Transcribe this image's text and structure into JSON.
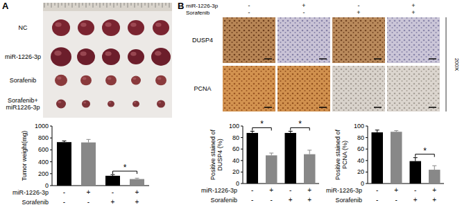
{
  "figure": {
    "panels": [
      "A",
      "B"
    ],
    "tumor_groups": [
      "NC",
      "miR-1226-3p",
      "Sorafenib",
      "Sorafenib+ miR1226-3p"
    ],
    "ihc_header": [
      {
        "label": "miR-1226-3p",
        "signs": [
          "-",
          "+",
          "-",
          "+"
        ]
      },
      {
        "label": "Sorafenib",
        "signs": [
          "-",
          "-",
          "+",
          "+"
        ]
      }
    ],
    "ihc_rows": [
      "DUSP4",
      "PCNA"
    ],
    "magnification": "200X"
  },
  "chart_data": [
    {
      "type": "bar",
      "y_label": "Tumor weight(mg)",
      "categories": [
        null,
        null,
        null,
        null
      ],
      "values": [
        730,
        725,
        165,
        110
      ],
      "errors": [
        20,
        50,
        20,
        15
      ],
      "colors": [
        "#000000",
        "#888888",
        "#000000",
        "#888888"
      ],
      "ylim": [
        0,
        1000
      ],
      "yticks": [
        0,
        200,
        400,
        600,
        800,
        1000
      ],
      "condition_rows": [
        {
          "label": "miR-1226-3p",
          "signs": [
            "-",
            "+",
            "-",
            "+"
          ]
        },
        {
          "label": "Sorafenib",
          "signs": [
            "-",
            "-",
            "+",
            "+"
          ]
        }
      ],
      "annotations": [
        {
          "text": "*",
          "from": 2,
          "to": 3
        }
      ]
    },
    {
      "type": "bar",
      "y_label": "Positive stained of DUSP4 (%)",
      "categories": [
        null,
        null,
        null,
        null
      ],
      "values": [
        88,
        49,
        88,
        51
      ],
      "errors": [
        3,
        4,
        3,
        7
      ],
      "colors": [
        "#000000",
        "#888888",
        "#000000",
        "#888888"
      ],
      "ylim": [
        0,
        100
      ],
      "yticks": [
        0,
        20,
        40,
        60,
        80,
        100
      ],
      "condition_rows": [
        {
          "label": "miR-1226-3p",
          "signs": [
            "-",
            "+",
            "-",
            "+"
          ]
        },
        {
          "label": "Sorafenib",
          "signs": [
            "-",
            "-",
            "+",
            "+"
          ]
        }
      ],
      "annotations": [
        {
          "text": "*",
          "from": 0,
          "to": 1
        },
        {
          "text": "*",
          "from": 2,
          "to": 3
        }
      ]
    },
    {
      "type": "bar",
      "y_label": "Positive stained of PCNA (%)",
      "categories": [
        null,
        null,
        null,
        null
      ],
      "values": [
        89,
        90,
        39,
        24
      ],
      "errors": [
        4,
        2,
        6,
        7
      ],
      "colors": [
        "#000000",
        "#888888",
        "#000000",
        "#888888"
      ],
      "ylim": [
        0,
        100
      ],
      "yticks": [
        0,
        20,
        40,
        60,
        80,
        100
      ],
      "condition_rows": [
        {
          "label": "miR-1226-3p",
          "signs": [
            "-",
            "+",
            "-",
            "+"
          ]
        },
        {
          "label": "Sorafenib",
          "signs": [
            "-",
            "-",
            "+",
            "+"
          ]
        }
      ],
      "annotations": [
        {
          "text": "*",
          "from": 2,
          "to": 3
        }
      ]
    }
  ]
}
